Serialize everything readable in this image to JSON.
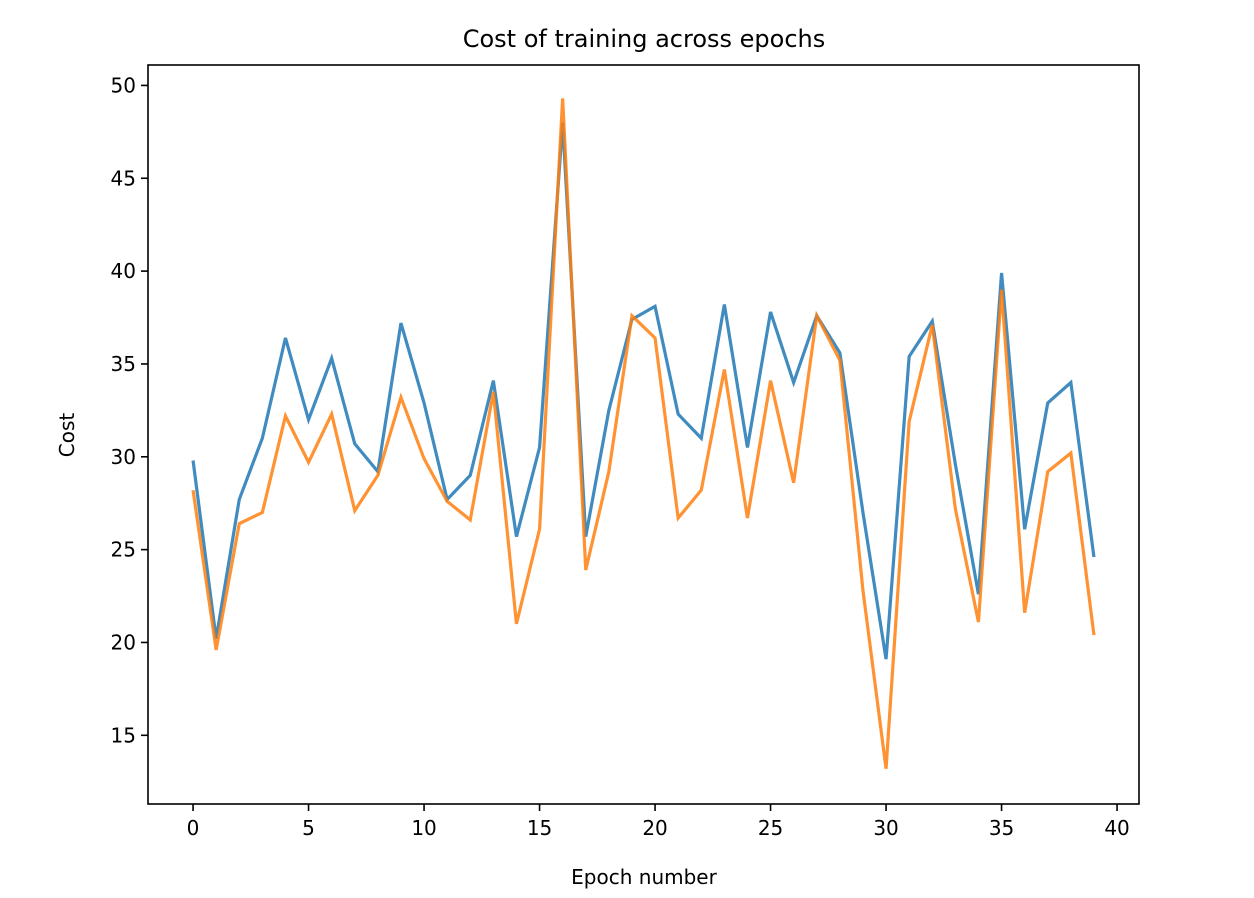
{
  "chart_data": {
    "type": "line",
    "title": "Cost of training across epochs",
    "xlabel": "Epoch number",
    "ylabel": "Cost",
    "xlim": [
      -1.95,
      40.95
    ],
    "ylim": [
      11.3,
      51.1
    ],
    "xticks": [
      0,
      5,
      10,
      15,
      20,
      25,
      30,
      35,
      40
    ],
    "yticks": [
      15,
      20,
      25,
      30,
      35,
      40,
      45,
      50
    ],
    "grid": false,
    "legend": "none",
    "x": [
      0,
      1,
      2,
      3,
      4,
      5,
      6,
      7,
      8,
      9,
      10,
      11,
      12,
      13,
      14,
      15,
      16,
      17,
      18,
      19,
      20,
      21,
      22,
      23,
      24,
      25,
      26,
      27,
      28,
      29,
      30,
      31,
      32,
      33,
      34,
      35,
      36,
      37,
      38,
      39
    ],
    "series": [
      {
        "color": "#1f77b4",
        "values": [
          29.8,
          20.2,
          27.7,
          31.0,
          36.4,
          32.0,
          35.3,
          30.7,
          29.2,
          37.2,
          32.9,
          27.7,
          29.0,
          34.1,
          25.7,
          30.5,
          48.0,
          25.7,
          32.5,
          37.4,
          38.1,
          32.3,
          31.0,
          38.2,
          30.5,
          37.8,
          34.0,
          37.6,
          35.6,
          27.0,
          19.1,
          35.4,
          37.3,
          29.6,
          22.6,
          39.9,
          26.1,
          32.9,
          34.0,
          24.6
        ]
      },
      {
        "color": "#ff7f0e",
        "values": [
          28.2,
          19.6,
          26.4,
          27.0,
          32.2,
          29.7,
          32.3,
          27.1,
          29.0,
          33.2,
          29.9,
          27.6,
          26.6,
          33.5,
          21.0,
          26.1,
          49.3,
          23.9,
          29.2,
          37.6,
          36.4,
          26.7,
          28.2,
          34.7,
          26.7,
          34.1,
          28.6,
          37.6,
          35.2,
          22.8,
          13.2,
          31.9,
          37.1,
          27.2,
          21.1,
          39.0,
          21.6,
          29.2,
          30.2,
          20.4
        ]
      }
    ]
  }
}
